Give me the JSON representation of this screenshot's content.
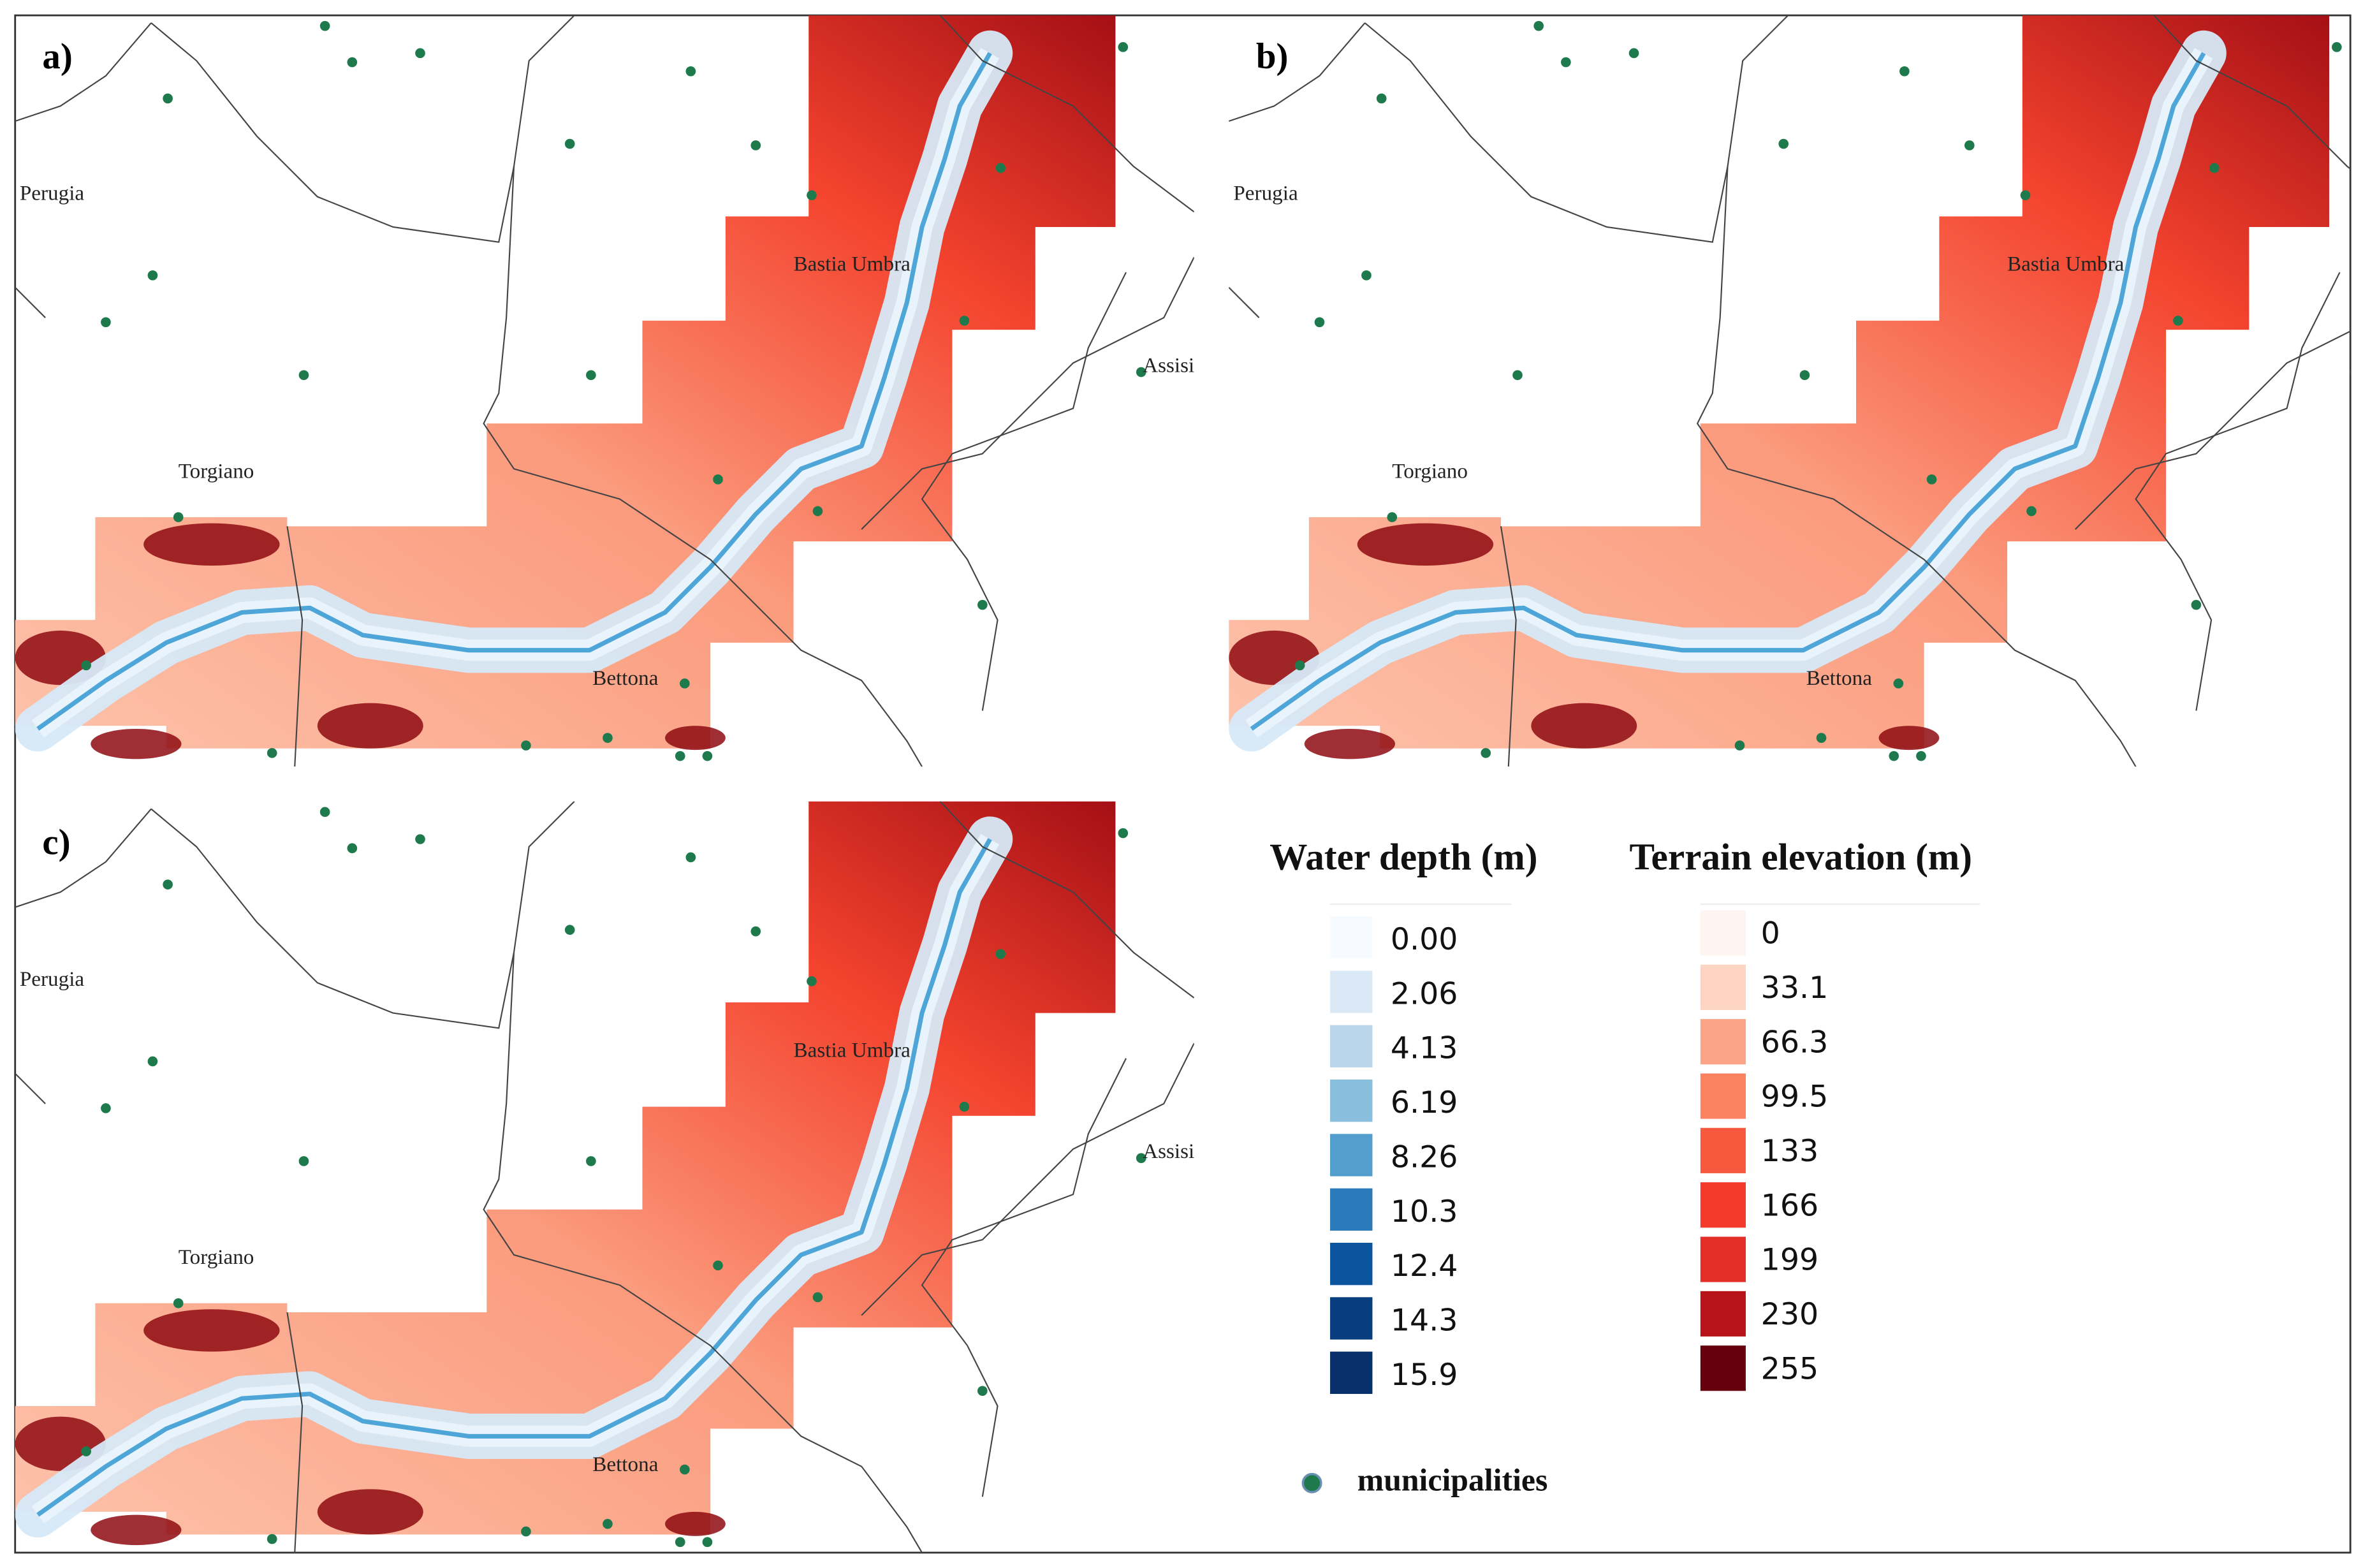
{
  "panels": [
    {
      "label": "a)",
      "places": [
        "Perugia",
        "Bastia Umbra",
        "Assisi",
        "Torgiano",
        "Bettona"
      ]
    },
    {
      "label": "b)",
      "places": [
        "Perugia",
        "Bastia Umbra",
        "Torgiano",
        "Bettona"
      ]
    },
    {
      "label": "c)",
      "places": [
        "Perugia",
        "Bastia Umbra",
        "Assisi",
        "Torgiano",
        "Bettona"
      ]
    }
  ],
  "legend": {
    "water_depth": {
      "title": "Water depth (m)",
      "entries": [
        "0.00",
        "2.06",
        "4.13",
        "6.19",
        "8.26",
        "10.3",
        "12.4",
        "14.3",
        "15.9"
      ]
    },
    "terrain": {
      "title": "Terrain elevation (m)",
      "entries": [
        "0",
        "33.1",
        "66.3",
        "99.5",
        "133",
        "166",
        "199",
        "230",
        "255"
      ]
    },
    "municipalities": "municipalities"
  }
}
